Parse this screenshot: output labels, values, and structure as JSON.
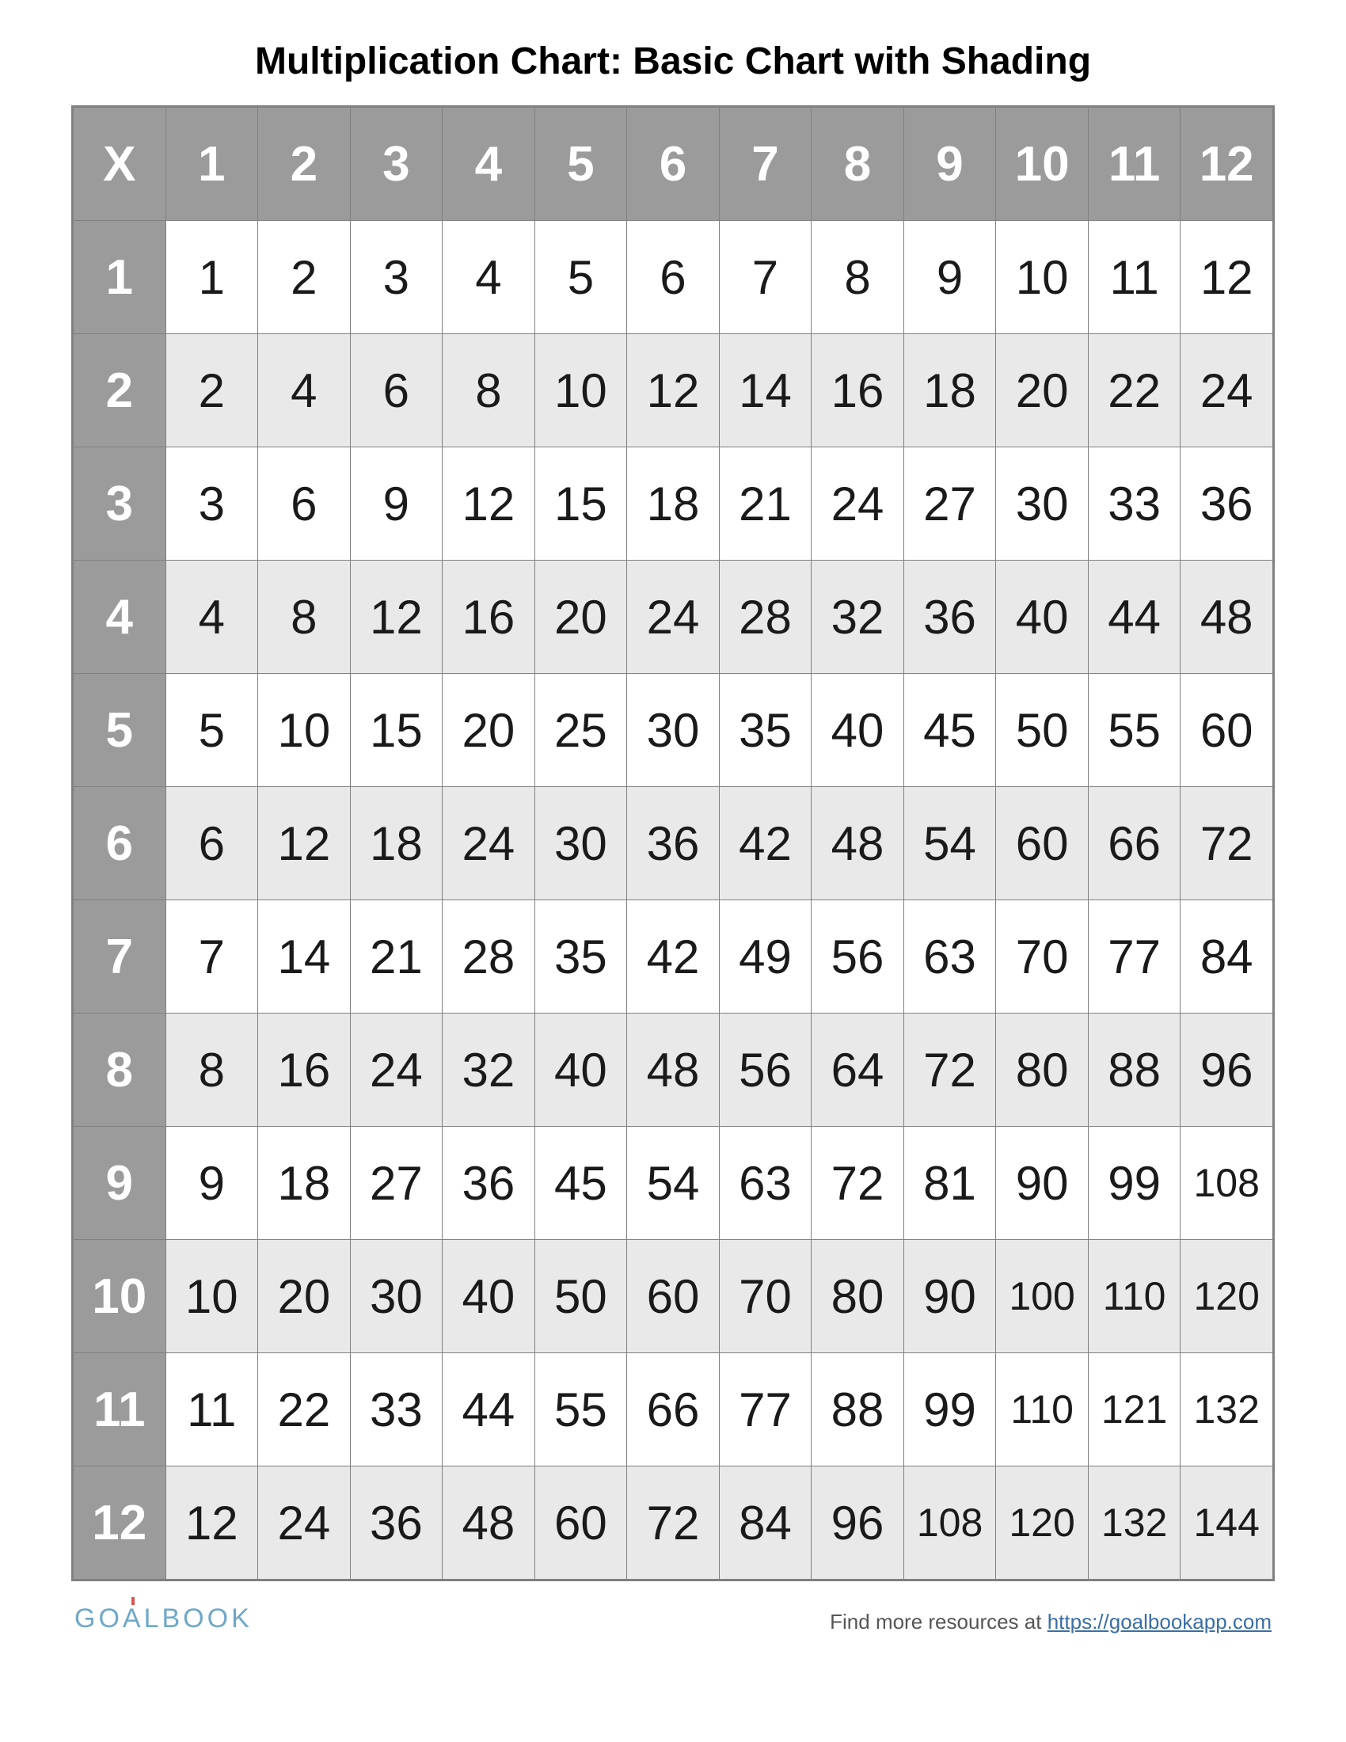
{
  "title": "Multiplication Chart: Basic Chart with Shading",
  "chart": {
    "type": "table",
    "corner_label": "X",
    "columns": [
      1,
      2,
      3,
      4,
      5,
      6,
      7,
      8,
      9,
      10,
      11,
      12
    ],
    "rows_labels": [
      1,
      2,
      3,
      4,
      5,
      6,
      7,
      8,
      9,
      10,
      11,
      12
    ],
    "cells": [
      [
        1,
        2,
        3,
        4,
        5,
        6,
        7,
        8,
        9,
        10,
        11,
        12
      ],
      [
        2,
        4,
        6,
        8,
        10,
        12,
        14,
        16,
        18,
        20,
        22,
        24
      ],
      [
        3,
        6,
        9,
        12,
        15,
        18,
        21,
        24,
        27,
        30,
        33,
        36
      ],
      [
        4,
        8,
        12,
        16,
        20,
        24,
        28,
        32,
        36,
        40,
        44,
        48
      ],
      [
        5,
        10,
        15,
        20,
        25,
        30,
        35,
        40,
        45,
        50,
        55,
        60
      ],
      [
        6,
        12,
        18,
        24,
        30,
        36,
        42,
        48,
        54,
        60,
        66,
        72
      ],
      [
        7,
        14,
        21,
        28,
        35,
        42,
        49,
        56,
        63,
        70,
        77,
        84
      ],
      [
        8,
        16,
        24,
        32,
        40,
        48,
        56,
        64,
        72,
        80,
        88,
        96
      ],
      [
        9,
        18,
        27,
        36,
        45,
        54,
        63,
        72,
        81,
        90,
        99,
        108
      ],
      [
        10,
        20,
        30,
        40,
        50,
        60,
        70,
        80,
        90,
        100,
        110,
        120
      ],
      [
        11,
        22,
        33,
        44,
        55,
        66,
        77,
        88,
        99,
        110,
        121,
        132
      ],
      [
        12,
        24,
        36,
        48,
        60,
        72,
        84,
        96,
        108,
        120,
        132,
        144
      ]
    ],
    "header_bg": "#9b9b9b",
    "header_text_color": "#ffffff",
    "odd_row_bg": "#ffffff",
    "even_row_bg": "#e9e9e9",
    "cell_text_color": "#1a1a1a",
    "border_color": "#808080",
    "base_font_size": 60,
    "small_font_size": 50,
    "small_font_threshold": 100,
    "title_font_size": 48,
    "header_font_size": 62
  },
  "footer": {
    "logo_text_1": "GO",
    "logo_text_a": "A",
    "logo_text_2": "LBOOK",
    "resources_text": "Find more resources at ",
    "link_text": "https://goalbookapp.com"
  }
}
